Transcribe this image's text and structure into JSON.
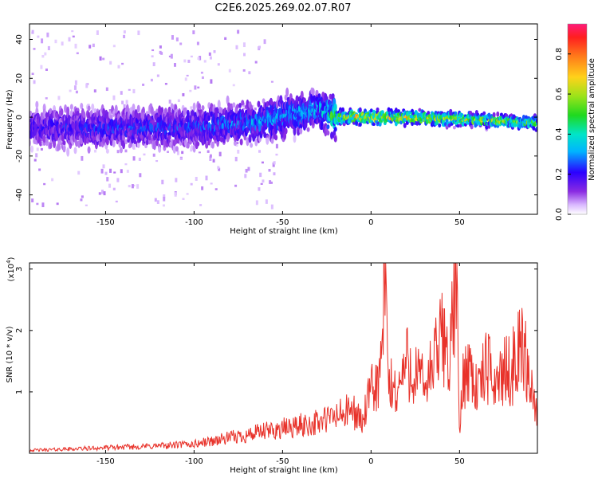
{
  "chart_data": [
    {
      "type": "heatmap",
      "title": "C2E6.2025.269.02.07.R07",
      "xlabel": "Height of straight line (km)",
      "ylabel": "Frequency (Hz)",
      "xlim": [
        -193,
        94
      ],
      "ylim": [
        -50,
        48
      ],
      "xticks": [
        "-150",
        "-100",
        "-50",
        "0",
        "50"
      ],
      "xtick_values": [
        -150,
        -100,
        -50,
        0,
        50
      ],
      "yticks": [
        "40",
        "20",
        "0",
        "-20",
        "-40"
      ],
      "ytick_values": [
        40,
        20,
        0,
        -20,
        -40
      ],
      "colorbar": {
        "label": "Normalized spectral amplitude",
        "range": [
          0,
          0.95
        ],
        "ticks": [
          "0.0",
          "0.2",
          "0.4",
          "0.6",
          "0.8"
        ],
        "tick_values": [
          0.0,
          0.2,
          0.4,
          0.6,
          0.8
        ]
      },
      "series": [
        {
          "name": "ridge_center_hz",
          "x": [
            -193,
            -150,
            -100,
            -60,
            -40,
            -30,
            -20,
            -10,
            0,
            50,
            94
          ],
          "values": [
            -5,
            -6,
            -5,
            -2,
            2,
            4,
            0,
            0,
            0,
            -1,
            -3
          ]
        },
        {
          "name": "ridge_peak_amplitude",
          "x": [
            -193,
            -150,
            -100,
            -60,
            -30,
            -20,
            -10,
            0,
            50,
            94
          ],
          "values": [
            0.25,
            0.28,
            0.3,
            0.38,
            0.42,
            0.6,
            0.85,
            0.85,
            0.75,
            0.6
          ]
        }
      ]
    },
    {
      "type": "line",
      "xlabel": "Height of straight line (km)",
      "ylabel": "SNR (10 * v/v)",
      "scale_label": "(x10",
      "scale_exp": "4",
      "scale_close": ")",
      "xlim": [
        -193,
        94
      ],
      "ylim": [
        0,
        3.1
      ],
      "xticks": [
        "-150",
        "-100",
        "-50",
        "0",
        "50"
      ],
      "xtick_values": [
        -150,
        -100,
        -50,
        0,
        50
      ],
      "yticks": [
        "3",
        "2",
        "1"
      ],
      "ytick_values": [
        3,
        2,
        1
      ],
      "series": [
        {
          "name": "SNR",
          "color": "#e8322a",
          "x": [
            -193,
            -180,
            -160,
            -140,
            -120,
            -100,
            -90,
            -80,
            -70,
            -60,
            -50,
            -40,
            -30,
            -20,
            -10,
            -5,
            0,
            5,
            8,
            10,
            15,
            20,
            25,
            30,
            35,
            40,
            45,
            48,
            50,
            52,
            55,
            60,
            65,
            70,
            75,
            80,
            85,
            90,
            94
          ],
          "values": [
            0.05,
            0.06,
            0.08,
            0.1,
            0.12,
            0.15,
            0.2,
            0.25,
            0.3,
            0.35,
            0.4,
            0.45,
            0.5,
            0.6,
            0.7,
            0.5,
            1.0,
            1.2,
            2.7,
            1.1,
            1.0,
            1.5,
            1.3,
            1.1,
            1.4,
            1.9,
            1.6,
            3.1,
            0.3,
            1.2,
            1.5,
            1.0,
            1.4,
            1.2,
            1.3,
            1.4,
            1.8,
            1.2,
            0.6
          ]
        }
      ]
    }
  ]
}
